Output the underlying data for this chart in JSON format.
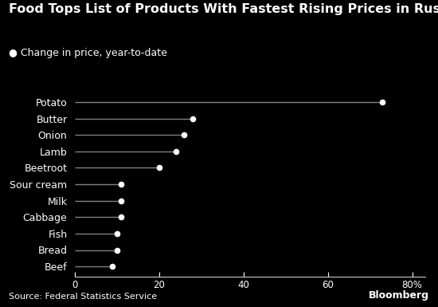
{
  "title": "Food Tops List of Products With Fastest Rising Prices in Russia",
  "legend_dot_label": "Change in price, year-to-date",
  "source": "Source: Federal Statistics Service",
  "branding": "Bloomberg",
  "categories": [
    "Potato",
    "Butter",
    "Onion",
    "Lamb",
    "Beetroot",
    "Sour cream",
    "Milk",
    "Cabbage",
    "Fish",
    "Bread",
    "Beef"
  ],
  "values": [
    73,
    28,
    26,
    24,
    20,
    11,
    11,
    11,
    10,
    10,
    9
  ],
  "xlim": [
    0,
    83
  ],
  "xticks": [
    0,
    20,
    40,
    60,
    80
  ],
  "xticklabels": [
    "0",
    "20",
    "40",
    "60",
    "80%"
  ],
  "background_color": "#000000",
  "text_color": "#ffffff",
  "line_color": "#808080",
  "dot_color": "#ffffff",
  "title_color": "#ffffff",
  "title_fontsize": 11.5,
  "label_fontsize": 9,
  "tick_fontsize": 8.5,
  "source_fontsize": 8
}
